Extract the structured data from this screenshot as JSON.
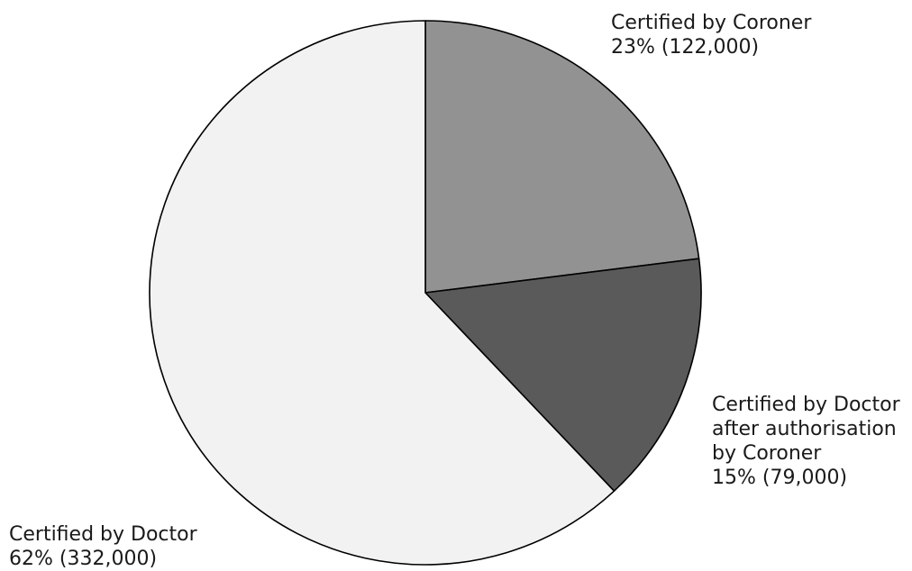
{
  "chart_data": {
    "type": "pie",
    "title": "",
    "slices": [
      {
        "name": "Certified by Coroner",
        "label_lines": [
          "Certified by Coroner",
          "23%   (122,000)"
        ],
        "percent": 23,
        "value": 122000,
        "color": "#929292"
      },
      {
        "name": "Certified by Doctor after authorisation by Coroner",
        "label_lines": [
          "Certified by Doctor",
          "after authorisation",
          "by Coroner",
          "15% (79,000)"
        ],
        "percent": 15,
        "value": 79000,
        "color": "#5a5a5a"
      },
      {
        "name": "Certified by Doctor",
        "label_lines": [
          "Certified by Doctor",
          "62%  (332,000)"
        ],
        "percent": 62,
        "value": 332000,
        "color": "#f2f2f2"
      }
    ],
    "start_angle_deg": 0,
    "direction": "clockwise",
    "legend": "none",
    "edge_color": "#000000"
  }
}
